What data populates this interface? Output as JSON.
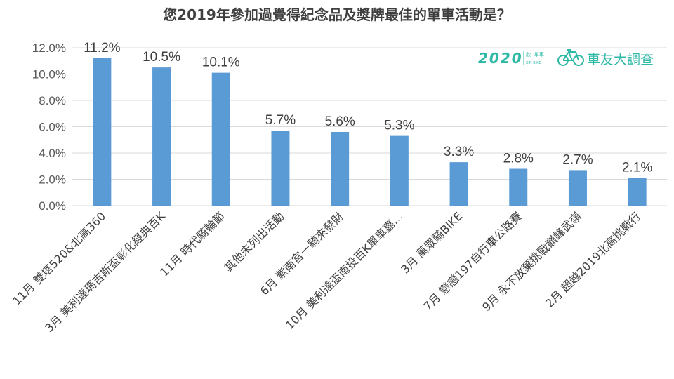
{
  "chart_data": {
    "type": "bar",
    "title": "您2019年參加過覺得紀念品及獎牌最佳的單車活動是？",
    "categories": [
      "11月 雙塔520&北高360",
      "3月 美利達瑪吉斯盃彰化經典百K",
      "11月 時代騎輪節",
      "其他未列出活動",
      "6月 紫南宮一騎來發財",
      "10月 美利達盃南投百K單車嘉…",
      "3月 萬眾騎BIKE",
      "7月 戀戀197自行車公路賽",
      "9月 永不放棄挑戰巔峰武嶺",
      "2月 超越2019北高挑戰行"
    ],
    "values": [
      11.2,
      10.5,
      10.1,
      5.7,
      5.6,
      5.3,
      3.3,
      2.8,
      2.7,
      2.1
    ],
    "data_labels": [
      "11.2%",
      "10.5%",
      "10.1%",
      "5.7%",
      "5.6%",
      "5.3%",
      "3.3%",
      "2.8%",
      "2.7%",
      "2.1%"
    ],
    "yticks": [
      "0.0%",
      "2.0%",
      "4.0%",
      "6.0%",
      "8.0%",
      "10.0%",
      "12.0%"
    ],
    "ylim": [
      0,
      12
    ],
    "ytick_step": 2,
    "xlabel": "",
    "ylabel": "",
    "grid": true,
    "bar_color": "#5b9bd5"
  },
  "logo": {
    "year": "2020",
    "brand_small_top": "欣",
    "brand_small_mid": "單車",
    "brand_small_sub": "XIN BIKE",
    "text": "車友大調查",
    "color": "#2eb8a6"
  }
}
